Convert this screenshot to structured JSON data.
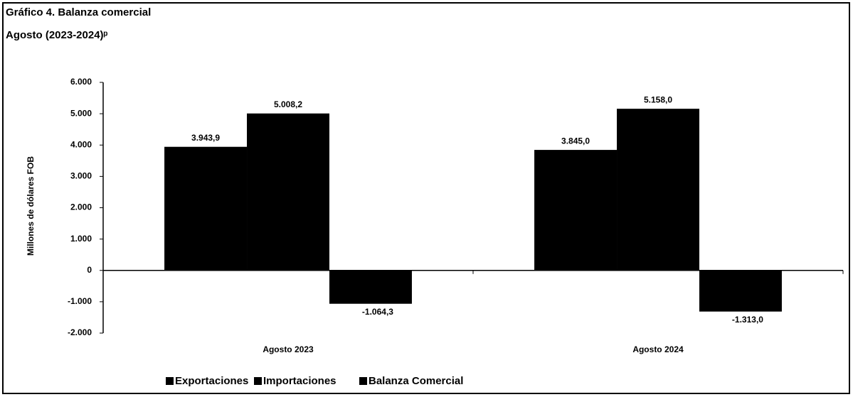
{
  "chart_data": {
    "type": "bar",
    "title": "Gráfico 4. Balanza comercial",
    "subtitle": "Agosto (2023-2024)ᵖ",
    "y_label": "Millones de dólares FOB",
    "categories": [
      "Agosto 2023",
      "Agosto 2024"
    ],
    "series": [
      {
        "name": "Exportaciones",
        "color": "#000000",
        "values": [
          3943.9,
          3845.0
        ],
        "value_labels": [
          "3.943,9",
          "3.845,0"
        ]
      },
      {
        "name": "Importaciones",
        "color": "#000000",
        "values": [
          5008.2,
          5158.0
        ],
        "value_labels": [
          "5.008,2",
          "5.158,0"
        ]
      },
      {
        "name": "Balanza Comercial",
        "color": "#000000",
        "values": [
          -1064.3,
          -1313.0
        ],
        "value_labels": [
          "-1.064,3",
          "-1.313,0"
        ]
      }
    ],
    "ylim": [
      -2000,
      6000
    ],
    "yticks": [
      {
        "value": -2000,
        "label": "-2.000"
      },
      {
        "value": -1000,
        "label": "-1.000"
      },
      0,
      {
        "value": 1000,
        "label": "1.000"
      },
      {
        "value": 2000,
        "label": "2.000"
      },
      {
        "value": 3000,
        "label": "3.000"
      },
      {
        "value": 4000,
        "label": "4.000"
      },
      {
        "value": 5000,
        "label": "5.000"
      },
      {
        "value": 6000,
        "label": "6.000"
      }
    ],
    "grid": false,
    "legend": "bottom"
  }
}
